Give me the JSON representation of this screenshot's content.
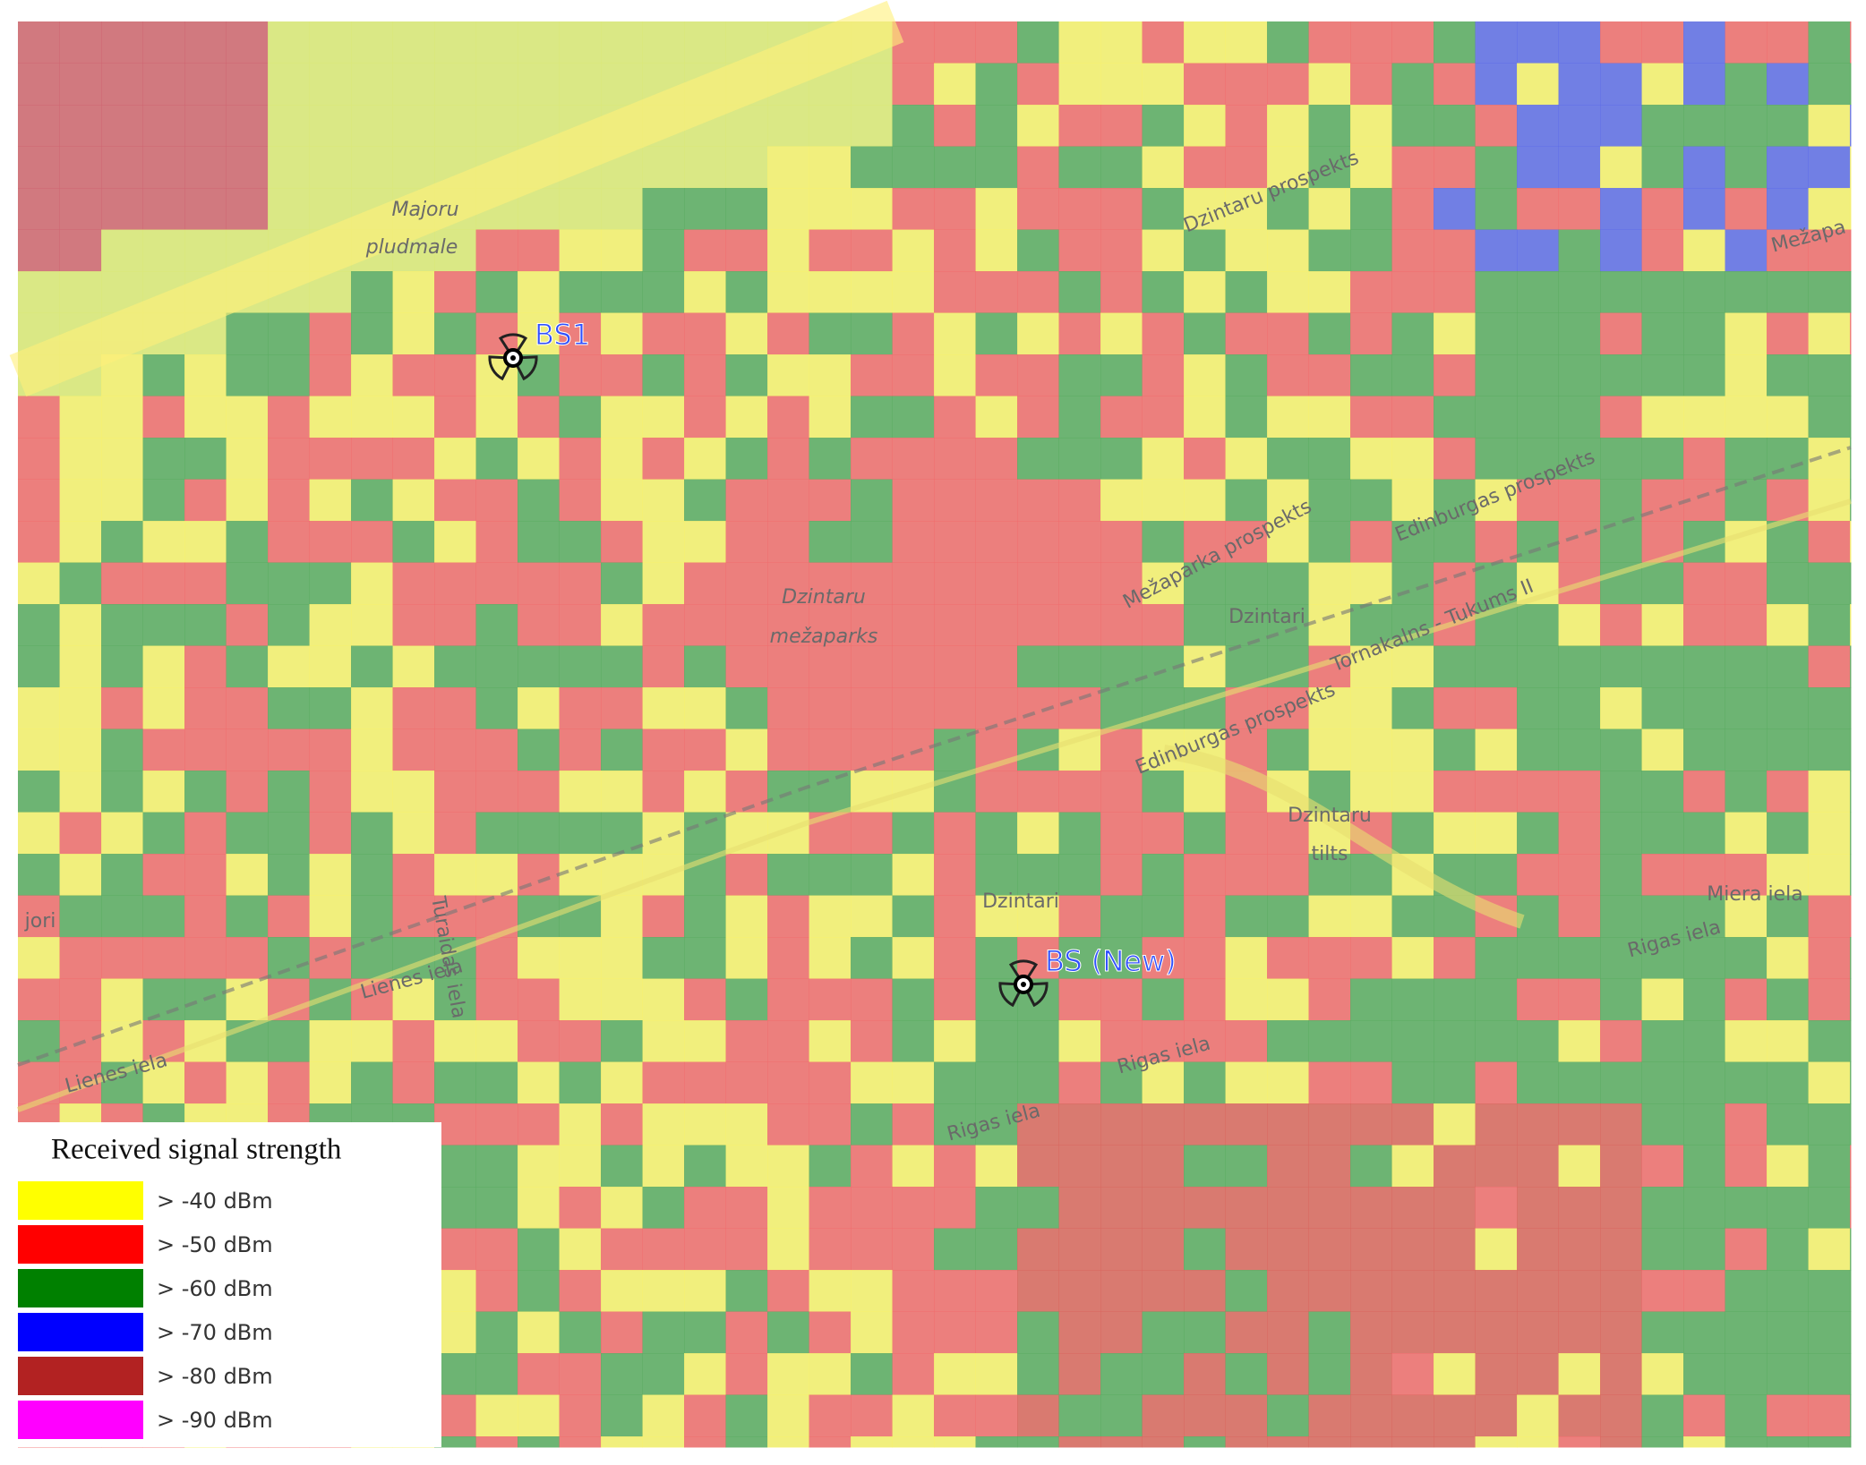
{
  "map": {
    "stations": [
      "BS1",
      "BS (New)"
    ],
    "labels": [
      "Majoru",
      "pludmale",
      "Dzintaru prospekts",
      "Mežaparka prospekts",
      "Edinburgas prospekts",
      "Dzintaru",
      "mežaparks",
      "Dzintari",
      "Edinburgas prospekts",
      "Dzintaru",
      "tilts",
      "Lienes iela",
      "Lienes iela",
      "Rigas iela",
      "Rigas iela",
      "Rigas iela",
      "Miera iela",
      "Turaidas iela",
      "jori",
      "Dzintari",
      "Mežapa",
      "Tornakalns - Tukums II"
    ]
  },
  "legend": {
    "title": "Received signal strength",
    "items": [
      {
        "label": "> -40 dBm",
        "color": "#ffff00"
      },
      {
        "label": "> -50 dBm",
        "color": "#ff0000"
      },
      {
        "label": "> -60 dBm",
        "color": "#008000"
      },
      {
        "label": "> -70 dBm",
        "color": "#0000ff"
      },
      {
        "label": "> -80 dBm",
        "color": "#b22222"
      },
      {
        "label": "> -90 dBm",
        "color": "#ff00ff"
      }
    ]
  }
}
